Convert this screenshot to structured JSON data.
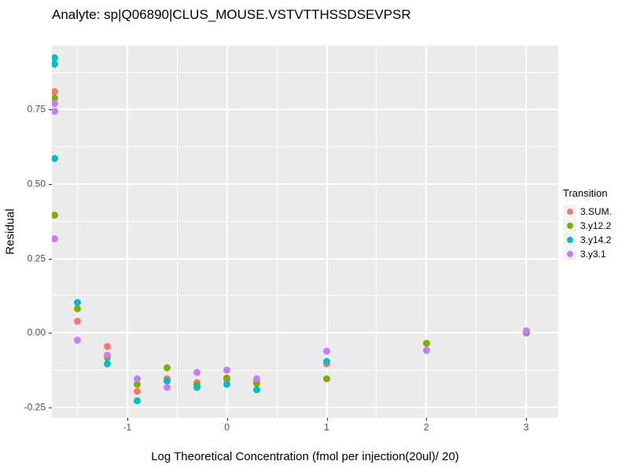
{
  "title": "Analyte: sp|Q06890|CLUS_MOUSE.VSTVTTHSSDSEVPSR",
  "colors": {
    "panel_bg": "#EBEBEB",
    "grid": "#FFFFFF",
    "plot_bg": "#FFFFFF",
    "tick_text": "#4D4D4D",
    "text": "#000000",
    "legend_key_bg": "#F2F2F2"
  },
  "chart_data": {
    "type": "scatter",
    "title": "Analyte: sp|Q06890|CLUS_MOUSE.VSTVTTHSSDSEVPSR",
    "xlabel": "Log Theoretical Concentration (fmol per injection(20ul)/ 20)",
    "ylabel": "Residual",
    "xlim": [
      -1.756,
      3.322
    ],
    "ylim": [
      -0.285,
      0.965
    ],
    "grid": true,
    "legend_title": "Transition",
    "legend_position": "right",
    "x_major_ticks": [
      {
        "label": "-1",
        "value": -1
      },
      {
        "label": "0",
        "value": 0
      },
      {
        "label": "1",
        "value": 1
      },
      {
        "label": "2",
        "value": 2
      },
      {
        "label": "3",
        "value": 3
      }
    ],
    "y_major_ticks": [
      {
        "label": "-0.25",
        "value": -0.25
      },
      {
        "label": "0.00",
        "value": 0
      },
      {
        "label": "0.25",
        "value": 0.25
      },
      {
        "label": "0.50",
        "value": 0.5
      },
      {
        "label": "0.75",
        "value": 0.75
      }
    ],
    "x_minor_ticks": [
      -1.5,
      -0.5,
      0.5,
      1.5,
      2.5
    ],
    "y_minor_ticks": [
      -0.125,
      0.125,
      0.375,
      0.625,
      0.875
    ],
    "series": [
      {
        "name": "3.SUM.",
        "color": "#F8766D",
        "points": [
          [
            -1.73,
            0.81
          ],
          [
            -1.5,
            0.04
          ],
          [
            -1.2,
            -0.047
          ],
          [
            -0.9,
            -0.197
          ],
          [
            -0.6,
            -0.155
          ],
          [
            -0.3,
            -0.168
          ],
          [
            0,
            -0.157
          ],
          [
            0.3,
            -0.165
          ],
          [
            1,
            -0.105
          ],
          [
            2,
            -0.036
          ],
          [
            3,
            0.0
          ]
        ]
      },
      {
        "name": "3.y12.2",
        "color": "#7CAE00",
        "points": [
          [
            -1.73,
            0.79
          ],
          [
            -1.73,
            0.395
          ],
          [
            -1.5,
            0.082
          ],
          [
            -1.2,
            -0.082
          ],
          [
            -0.9,
            -0.174
          ],
          [
            -0.6,
            -0.118
          ],
          [
            -0.3,
            -0.176
          ],
          [
            0,
            -0.152
          ],
          [
            0.3,
            -0.171
          ],
          [
            1,
            -0.153
          ],
          [
            2,
            -0.034
          ],
          [
            3,
            0.004
          ]
        ]
      },
      {
        "name": "3.y14.2",
        "color": "#00BFC4",
        "points": [
          [
            -1.73,
            0.925
          ],
          [
            -1.73,
            0.902
          ],
          [
            -1.73,
            0.585
          ],
          [
            -1.5,
            0.103
          ],
          [
            -1.2,
            -0.103
          ],
          [
            -0.9,
            -0.229
          ],
          [
            -0.6,
            -0.163
          ],
          [
            -0.3,
            -0.184
          ],
          [
            0,
            -0.174
          ],
          [
            0.3,
            -0.192
          ],
          [
            1,
            -0.097
          ],
          [
            2,
            -0.06
          ],
          [
            3,
            0.004
          ]
        ]
      },
      {
        "name": "3.y3.1",
        "color": "#C77CFF",
        "points": [
          [
            -1.73,
            0.77
          ],
          [
            -1.73,
            0.745
          ],
          [
            -1.73,
            0.316
          ],
          [
            -1.5,
            -0.026
          ],
          [
            -1.2,
            -0.076
          ],
          [
            -0.9,
            -0.153
          ],
          [
            -0.6,
            -0.182
          ],
          [
            -0.3,
            -0.134
          ],
          [
            0,
            -0.126
          ],
          [
            0.3,
            -0.153
          ],
          [
            1,
            -0.061
          ],
          [
            2,
            -0.058
          ],
          [
            3,
            0.008
          ]
        ]
      }
    ]
  }
}
